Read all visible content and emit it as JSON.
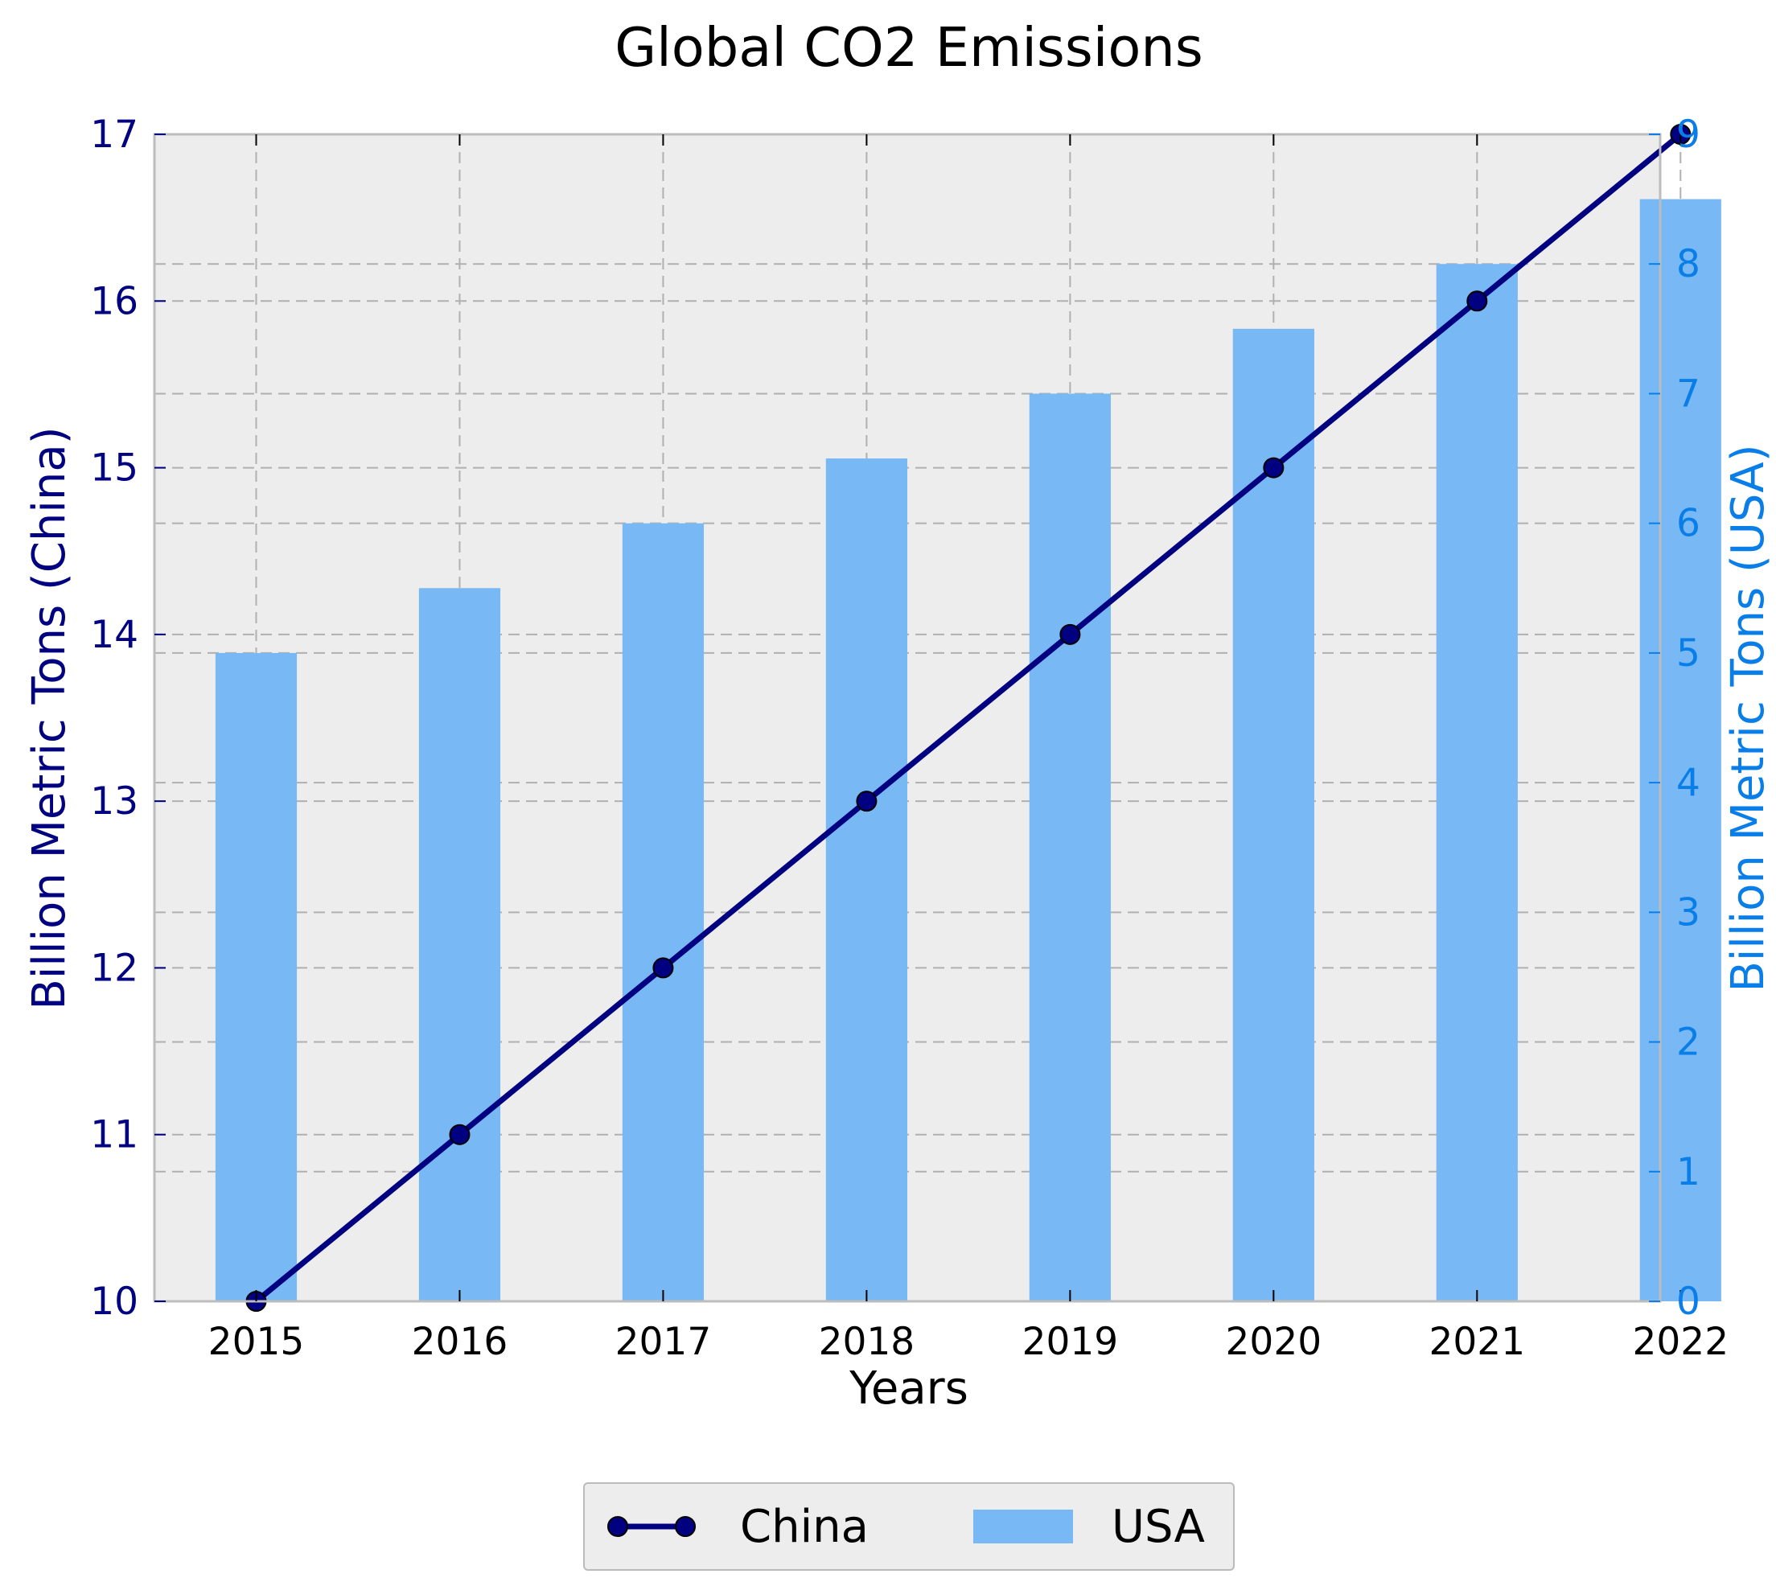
{
  "chart_data": {
    "type": "bar+line",
    "title": "Global CO2 Emissions",
    "xlabel": "Years",
    "categories": [
      "2015",
      "2016",
      "2017",
      "2018",
      "2019",
      "2020",
      "2021",
      "2022"
    ],
    "y_left": {
      "label": "Billion Metric Tons (China)",
      "range": [
        10,
        17
      ],
      "ticks": [
        10,
        11,
        12,
        13,
        14,
        15,
        16,
        17
      ],
      "color": "#000080"
    },
    "y_right": {
      "label": "Billion Metric Tons (USA)",
      "range": [
        0,
        9
      ],
      "ticks": [
        0,
        1,
        2,
        3,
        4,
        5,
        6,
        7,
        8,
        9
      ],
      "color": "#0a7ee8"
    },
    "series": [
      {
        "name": "China",
        "type": "line",
        "axis": "left",
        "color": "#000080",
        "values": [
          10,
          11,
          12,
          13,
          14,
          15,
          16,
          17
        ]
      },
      {
        "name": "USA",
        "type": "bar",
        "axis": "right",
        "color": "#78b8f5",
        "values": [
          5.0,
          5.5,
          6.0,
          6.5,
          7.0,
          7.5,
          8.0,
          8.5
        ]
      }
    ],
    "grid": true,
    "grid_style": "dashed",
    "plot_background": "#ededed",
    "legend_position": "bottom-center"
  }
}
